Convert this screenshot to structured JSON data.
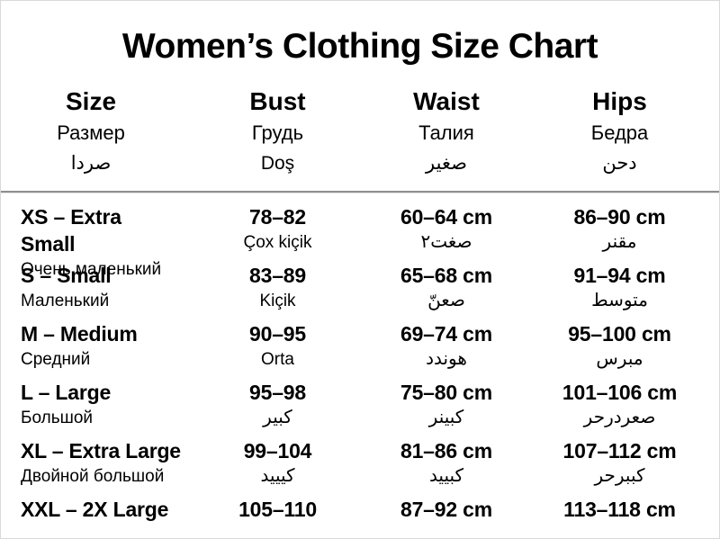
{
  "title": "Women’s Clothing Size Chart",
  "colors": {
    "background": "#ffffff",
    "text": "#000000",
    "divider": "#8f8f8f"
  },
  "chart_data": {
    "type": "table",
    "title": "Women’s Clothing Size Chart",
    "layout": {
      "column_alignment": [
        "left",
        "center",
        "center",
        "center"
      ],
      "header_divider": true
    },
    "columns": [
      {
        "en": "Size",
        "ru": "Размер",
        "ar": "صردا"
      },
      {
        "en": "Bust",
        "ru": "Грудь",
        "ar": "Doş"
      },
      {
        "en": "Waist",
        "ru": "Талия",
        "ar": "صغير"
      },
      {
        "en": "Hips",
        "ru": "Бедра",
        "ar": "دحن"
      }
    ],
    "rows": [
      {
        "size": "XS – Extra Small",
        "size_sub": "Очень маленький",
        "bust": "78–82",
        "bust_sub": "Çox kiçik",
        "waist": "60–64 cm",
        "waist_sub": "صغت٢",
        "hips": "86–90 cm",
        "hips_sub": "مقنر"
      },
      {
        "size": "S – Small",
        "size_sub": "Маленький",
        "bust": "83–89",
        "bust_sub": "Kiçik",
        "waist": "65–68 cm",
        "waist_sub": "صعنّ",
        "hips": "91–94 cm",
        "hips_sub": "متوسط"
      },
      {
        "size": "M – Medium",
        "size_sub": "Средний",
        "bust": "90–95",
        "bust_sub": "Orta",
        "waist": "69–74 cm",
        "waist_sub": "هوندد",
        "hips": "95–100 cm",
        "hips_sub": "مبرس"
      },
      {
        "size": "L – Large",
        "size_sub": "Большой",
        "bust": "95–98",
        "bust_sub": "كبير",
        "waist": "75–80 cm",
        "waist_sub": "كبينر",
        "hips": "101–106 cm",
        "hips_sub": "صعردرحر"
      },
      {
        "size": "XL – Extra Large",
        "size_sub": "Двойной большой",
        "bust": "99–104",
        "bust_sub": "كيييد",
        "waist": "81–86 cm",
        "waist_sub": "كبييد",
        "hips": "107–112 cm",
        "hips_sub": "كببرحر"
      },
      {
        "size": "XXL – 2X Large",
        "size_sub": "",
        "bust": "105–110",
        "bust_sub": "",
        "waist": "87–92 cm",
        "waist_sub": "",
        "hips": "113–118 cm",
        "hips_sub": ""
      }
    ]
  }
}
